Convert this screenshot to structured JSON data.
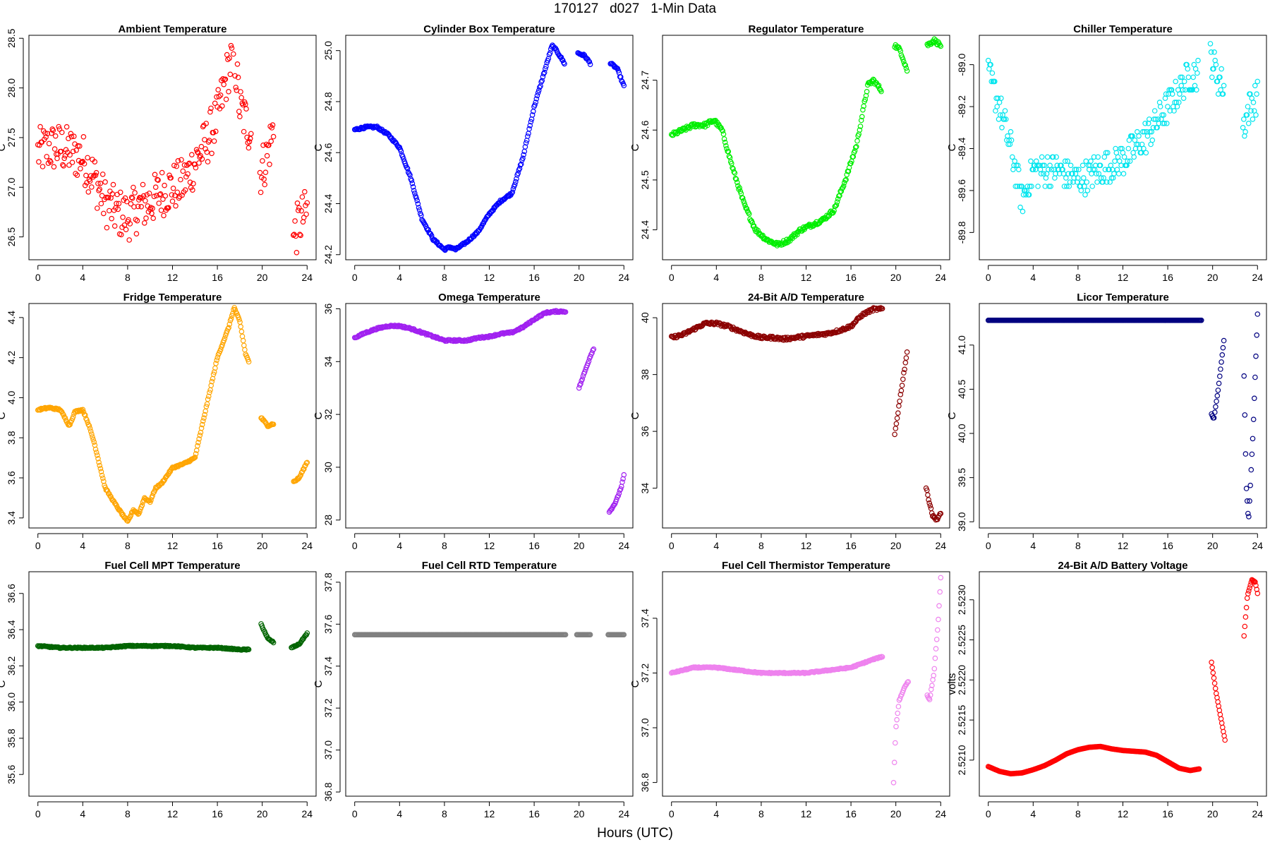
{
  "page": {
    "title": "170127   d027   1-Min Data",
    "xlabel": "Hours (UTC)"
  },
  "chart_data": [
    {
      "type": "scatter",
      "title": "Ambient Temperature",
      "ylabel": "C",
      "color": "#ff0000",
      "xlim": [
        -0.8,
        24.8
      ],
      "ylim": [
        26.27,
        28.53
      ],
      "xticks": [
        0,
        4,
        8,
        12,
        16,
        20,
        24
      ],
      "yticks": [
        26.5,
        27.0,
        27.5,
        28.0,
        28.5
      ],
      "ytick_labels": [
        "26.5",
        "27.0",
        "27.5",
        "28.0",
        "28.5"
      ],
      "noise": 0.25,
      "segments": [
        {
          "x": [
            0,
            1,
            2,
            3,
            4,
            5,
            6,
            7,
            8,
            9,
            10,
            11,
            12,
            13,
            14,
            15,
            16,
            17,
            17.5,
            18,
            19
          ],
          "y": [
            27.35,
            27.4,
            27.4,
            27.35,
            27.3,
            27.1,
            26.85,
            26.75,
            26.7,
            26.8,
            26.85,
            26.95,
            27.0,
            27.05,
            27.25,
            27.45,
            27.7,
            28.2,
            28.35,
            27.8,
            27.55
          ]
        },
        {
          "x": [
            19.8,
            20.4,
            21.0
          ],
          "y": [
            27.15,
            27.3,
            27.6
          ]
        },
        {
          "x": [
            22.7,
            23.3,
            24.0
          ],
          "y": [
            26.45,
            26.65,
            26.75
          ]
        }
      ]
    },
    {
      "type": "scatter",
      "title": "Cylinder Box Temperature",
      "ylabel": "C",
      "color": "#0000ff",
      "xlim": [
        -0.8,
        24.8
      ],
      "ylim": [
        24.18,
        25.06
      ],
      "xticks": [
        0,
        4,
        8,
        12,
        16,
        20,
        24
      ],
      "yticks": [
        24.2,
        24.4,
        24.6,
        24.8,
        25.0
      ],
      "ytick_labels": [
        "24.2",
        "24.4",
        "24.6",
        "24.8",
        "25.0"
      ],
      "noise": 0.004,
      "segments": [
        {
          "x": [
            0,
            1,
            2,
            3,
            4,
            5,
            6,
            7,
            8,
            8.5,
            9,
            10,
            11,
            12,
            13,
            14,
            15,
            16,
            17,
            17.6,
            18,
            18.7
          ],
          "y": [
            24.69,
            24.7,
            24.7,
            24.67,
            24.62,
            24.5,
            24.34,
            24.26,
            24.22,
            24.23,
            24.22,
            24.25,
            24.29,
            24.36,
            24.41,
            24.44,
            24.58,
            24.78,
            24.93,
            25.02,
            25.0,
            24.95
          ]
        },
        {
          "x": [
            19.9,
            20.5,
            21.0
          ],
          "y": [
            24.99,
            24.98,
            24.95
          ]
        },
        {
          "x": [
            22.8,
            23.4,
            24.0
          ],
          "y": [
            24.95,
            24.93,
            24.86
          ]
        }
      ]
    },
    {
      "type": "scatter",
      "title": "Regulator Temperature",
      "ylabel": "C",
      "color": "#00ee00",
      "xlim": [
        -0.8,
        24.8
      ],
      "ylim": [
        24.34,
        24.79
      ],
      "xticks": [
        0,
        4,
        8,
        12,
        16,
        20,
        24
      ],
      "yticks": [
        24.4,
        24.5,
        24.6,
        24.7
      ],
      "ytick_labels": [
        "24.4",
        "24.5",
        "24.6",
        "24.7"
      ],
      "noise": 0.004,
      "segments": [
        {
          "x": [
            0,
            1,
            2,
            3,
            3.8,
            4.5,
            5.5,
            6.5,
            7.5,
            8.5,
            9.5,
            10.5,
            11.5,
            12.5,
            13.5,
            14.5,
            15.5,
            16.5,
            17.5,
            18,
            18.7
          ],
          "y": [
            24.59,
            24.6,
            24.61,
            24.61,
            24.62,
            24.6,
            24.52,
            24.45,
            24.4,
            24.38,
            24.37,
            24.38,
            24.4,
            24.41,
            24.42,
            24.44,
            24.5,
            24.57,
            24.69,
            24.7,
            24.68
          ]
        },
        {
          "x": [
            19.9,
            20.4,
            21.0
          ],
          "y": [
            24.77,
            24.76,
            24.72
          ]
        },
        {
          "x": [
            22.8,
            23.4,
            24.0
          ],
          "y": [
            24.77,
            24.78,
            24.77
          ]
        }
      ]
    },
    {
      "type": "scatter",
      "title": "Chiller Temperature",
      "ylabel": "C",
      "color": "#00e5ee",
      "xlim": [
        -0.8,
        24.8
      ],
      "ylim": [
        -89.93,
        -88.86
      ],
      "xticks": [
        0,
        4,
        8,
        12,
        16,
        20,
        24
      ],
      "yticks": [
        -89.8,
        -89.6,
        -89.4,
        -89.2,
        -89.0
      ],
      "ytick_labels": [
        "-89.8",
        "-89.6",
        "-89.4",
        "-89.2",
        "-89.0"
      ],
      "noise": 0.08,
      "quantize": 0.02,
      "segments": [
        {
          "x": [
            0,
            1,
            2,
            3,
            4,
            5,
            6,
            8,
            10,
            12,
            14,
            16,
            18,
            18.7
          ],
          "y": [
            -89.05,
            -89.2,
            -89.4,
            -89.65,
            -89.5,
            -89.5,
            -89.5,
            -89.55,
            -89.5,
            -89.45,
            -89.35,
            -89.2,
            -89.05,
            -89.05
          ]
        },
        {
          "x": [
            19.8,
            20.4,
            21.0
          ],
          "y": [
            -88.95,
            -89.05,
            -89.1
          ]
        },
        {
          "x": [
            22.7,
            23.3,
            24.0
          ],
          "y": [
            -89.3,
            -89.2,
            -89.15
          ]
        }
      ]
    },
    {
      "type": "scatter",
      "title": "Fridge Temperature",
      "ylabel": "C",
      "color": "#ffa500",
      "xlim": [
        -0.8,
        24.8
      ],
      "ylim": [
        3.35,
        4.47
      ],
      "xticks": [
        0,
        4,
        8,
        12,
        16,
        20,
        24
      ],
      "yticks": [
        3.4,
        3.6,
        3.8,
        4.0,
        4.2,
        4.4
      ],
      "ytick_labels": [
        "3.4",
        "3.6",
        "3.8",
        "4.0",
        "4.2",
        "4.4"
      ],
      "noise": 0.004,
      "segments": [
        {
          "x": [
            0,
            1,
            2,
            2.8,
            3.3,
            4,
            4.5,
            5,
            6,
            7,
            8,
            8.5,
            9,
            9.5,
            10,
            10.5,
            11,
            12,
            13,
            14,
            15,
            16,
            17,
            17.5,
            18,
            18.5,
            18.8
          ],
          "y": [
            3.94,
            3.95,
            3.94,
            3.86,
            3.93,
            3.94,
            3.87,
            3.78,
            3.55,
            3.46,
            3.38,
            3.44,
            3.42,
            3.5,
            3.48,
            3.55,
            3.57,
            3.65,
            3.67,
            3.7,
            3.95,
            4.2,
            4.35,
            4.45,
            4.38,
            4.22,
            4.18
          ]
        },
        {
          "x": [
            19.9,
            20.5,
            21.0
          ],
          "y": [
            3.9,
            3.86,
            3.87
          ]
        },
        {
          "x": [
            22.8,
            23.3,
            24.0
          ],
          "y": [
            3.58,
            3.6,
            3.68
          ]
        }
      ]
    },
    {
      "type": "scatter",
      "title": "Omega Temperature",
      "ylabel": "C",
      "color": "#a020f0",
      "xlim": [
        -0.8,
        24.8
      ],
      "ylim": [
        27.7,
        36.2
      ],
      "xticks": [
        0,
        4,
        8,
        12,
        16,
        20,
        24
      ],
      "yticks": [
        28,
        30,
        32,
        34,
        36
      ],
      "ytick_labels": [
        "28",
        "30",
        "32",
        "34",
        "36"
      ],
      "noise": 0.03,
      "segments": [
        {
          "x": [
            0,
            1,
            2,
            3,
            4,
            5,
            6,
            7,
            8,
            9,
            10,
            11,
            12,
            13,
            14,
            15,
            16,
            17,
            18,
            18.8
          ],
          "y": [
            34.9,
            35.1,
            35.25,
            35.35,
            35.35,
            35.25,
            35.1,
            34.95,
            34.8,
            34.8,
            34.8,
            34.9,
            34.95,
            35.05,
            35.1,
            35.3,
            35.6,
            35.85,
            35.9,
            35.9
          ]
        },
        {
          "x": [
            20.0,
            20.5,
            21.0,
            21.3
          ],
          "y": [
            33.0,
            33.6,
            34.2,
            34.5
          ]
        },
        {
          "x": [
            22.7,
            23.3,
            23.8,
            24.0
          ],
          "y": [
            28.3,
            28.7,
            29.3,
            29.7
          ]
        }
      ]
    },
    {
      "type": "scatter",
      "title": "24-Bit A/D Temperature",
      "ylabel": "C",
      "color": "#8b0000",
      "xlim": [
        -0.8,
        24.8
      ],
      "ylim": [
        32.6,
        40.5
      ],
      "xticks": [
        0,
        4,
        8,
        12,
        16,
        20,
        24
      ],
      "yticks": [
        34,
        36,
        38,
        40
      ],
      "ytick_labels": [
        "34",
        "36",
        "38",
        "40"
      ],
      "noise": 0.05,
      "segments": [
        {
          "x": [
            0,
            1,
            2,
            3,
            4,
            5,
            6,
            7,
            8,
            9,
            10,
            11,
            12,
            13,
            14,
            15,
            16,
            17,
            18,
            18.8
          ],
          "y": [
            39.3,
            39.4,
            39.6,
            39.8,
            39.8,
            39.7,
            39.55,
            39.4,
            39.3,
            39.3,
            39.25,
            39.3,
            39.35,
            39.4,
            39.45,
            39.55,
            39.7,
            40.1,
            40.3,
            40.3
          ]
        },
        {
          "x": [
            19.9,
            20.5,
            21.0
          ],
          "y": [
            35.9,
            37.5,
            38.8
          ]
        },
        {
          "x": [
            22.7,
            23.3,
            23.7,
            24.0
          ],
          "y": [
            34.0,
            33.0,
            32.9,
            33.1
          ]
        }
      ]
    },
    {
      "type": "scatter",
      "title": "Licor Temperature",
      "ylabel": "C",
      "color": "#000080",
      "xlim": [
        -0.8,
        24.8
      ],
      "ylim": [
        38.93,
        41.47
      ],
      "xticks": [
        0,
        4,
        8,
        12,
        16,
        20,
        24
      ],
      "yticks": [
        39.0,
        39.5,
        40.0,
        40.5,
        41.0
      ],
      "ytick_labels": [
        "39.0",
        "39.5",
        "40.0",
        "40.5",
        "41.0"
      ],
      "noise": 0.0,
      "segments": [
        {
          "x": [
            0,
            19.0
          ],
          "y": [
            41.28,
            41.28
          ]
        },
        {
          "x": [
            19.9,
            20.1,
            20.5,
            21.0
          ],
          "y": [
            40.22,
            40.16,
            40.5,
            41.05
          ]
        },
        {
          "x": [
            22.8,
            23.0,
            23.2,
            23.6,
            24.0
          ],
          "y": [
            40.65,
            39.4,
            39.0,
            40.0,
            41.35
          ]
        }
      ]
    },
    {
      "type": "scatter",
      "title": "Fuel Cell MPT Temperature",
      "ylabel": "C",
      "color": "#006400",
      "xlim": [
        -0.8,
        24.8
      ],
      "ylim": [
        35.48,
        36.72
      ],
      "xticks": [
        0,
        4,
        8,
        12,
        16,
        20,
        24
      ],
      "yticks": [
        35.6,
        35.8,
        36.0,
        36.2,
        36.4,
        36.6
      ],
      "ytick_labels": [
        "35.6",
        "35.8",
        "36.0",
        "36.2",
        "36.4",
        "36.6"
      ],
      "noise": 0.003,
      "segments": [
        {
          "x": [
            0,
            2,
            4,
            6,
            8,
            10,
            12,
            14,
            16,
            18,
            18.8
          ],
          "y": [
            36.31,
            36.3,
            36.3,
            36.3,
            36.31,
            36.31,
            36.31,
            36.3,
            36.3,
            36.29,
            36.29
          ]
        },
        {
          "x": [
            19.9,
            20.5,
            21.0
          ],
          "y": [
            36.43,
            36.35,
            36.33
          ]
        },
        {
          "x": [
            22.6,
            23.3,
            24.0
          ],
          "y": [
            36.3,
            36.32,
            36.38
          ]
        }
      ]
    },
    {
      "type": "scatter",
      "title": "Fuel Cell RTD Temperature",
      "ylabel": "C",
      "color": "#808080",
      "xlim": [
        -0.8,
        24.8
      ],
      "ylim": [
        36.78,
        37.85
      ],
      "xticks": [
        0,
        4,
        8,
        12,
        16,
        20,
        24
      ],
      "yticks": [
        36.8,
        37.0,
        37.2,
        37.4,
        37.6,
        37.8
      ],
      "ytick_labels": [
        "36.8",
        "37.0",
        "37.2",
        "37.4",
        "37.6",
        "37.8"
      ],
      "noise": 0.0,
      "segments": [
        {
          "x": [
            0,
            18.8
          ],
          "y": [
            37.55,
            37.55
          ]
        },
        {
          "x": [
            19.8,
            21.0
          ],
          "y": [
            37.55,
            37.55
          ]
        },
        {
          "x": [
            22.6,
            24.0
          ],
          "y": [
            37.55,
            37.55
          ]
        }
      ]
    },
    {
      "type": "scatter",
      "title": "Fuel Cell Thermistor Temperature",
      "ylabel": "C",
      "color": "#ee82ee",
      "xlim": [
        -0.8,
        24.8
      ],
      "ylim": [
        36.75,
        37.57
      ],
      "xticks": [
        0,
        4,
        8,
        12,
        16,
        20,
        24
      ],
      "yticks": [
        36.8,
        37.0,
        37.2,
        37.4
      ],
      "ytick_labels": [
        "36.8",
        "37.0",
        "37.2",
        "37.4"
      ],
      "noise": 0.002,
      "segments": [
        {
          "x": [
            0,
            2,
            4,
            6,
            8,
            10,
            12,
            14,
            16,
            18,
            18.8
          ],
          "y": [
            37.2,
            37.22,
            37.22,
            37.21,
            37.2,
            37.2,
            37.2,
            37.21,
            37.22,
            37.25,
            37.26
          ]
        },
        {
          "x": [
            19.8,
            20.0,
            20.3,
            20.8,
            21.1
          ],
          "y": [
            36.8,
            37.0,
            37.1,
            37.15,
            37.17
          ]
        },
        {
          "x": [
            22.8,
            23.0,
            23.4,
            23.8,
            24.0
          ],
          "y": [
            37.12,
            37.1,
            37.2,
            37.4,
            37.55
          ]
        }
      ]
    },
    {
      "type": "scatter",
      "title": "24-Bit A/D Battery Voltage",
      "ylabel": "volts",
      "color": "#ff0000",
      "xlim": [
        -0.8,
        24.8
      ],
      "ylim": [
        2.52055,
        2.52335
      ],
      "xticks": [
        0,
        4,
        8,
        12,
        16,
        20,
        24
      ],
      "yticks": [
        2.521,
        2.5215,
        2.522,
        2.5225,
        2.523
      ],
      "ytick_labels": [
        "2.5210",
        "2.5215",
        "2.5220",
        "2.5225",
        "2.5230"
      ],
      "noise": 0.0,
      "segments": [
        {
          "x": [
            0,
            1,
            2,
            3,
            4,
            5,
            6,
            7,
            8,
            9,
            10,
            11,
            12,
            13,
            14,
            15,
            16,
            17,
            18,
            18.8
          ],
          "y": [
            2.52092,
            2.52086,
            2.52083,
            2.52084,
            2.52088,
            2.52093,
            2.521,
            2.52108,
            2.52113,
            2.52116,
            2.52117,
            2.52114,
            2.52112,
            2.52111,
            2.5211,
            2.52106,
            2.52098,
            2.5209,
            2.52087,
            2.52089
          ]
        },
        {
          "x": [
            19.9,
            20.3,
            20.7,
            21.1
          ],
          "y": [
            2.52222,
            2.52185,
            2.52155,
            2.52125
          ]
        },
        {
          "x": [
            22.8,
            23.1,
            23.5,
            23.8,
            24.0
          ],
          "y": [
            2.52255,
            2.52305,
            2.52325,
            2.52322,
            2.52308
          ]
        }
      ]
    }
  ]
}
